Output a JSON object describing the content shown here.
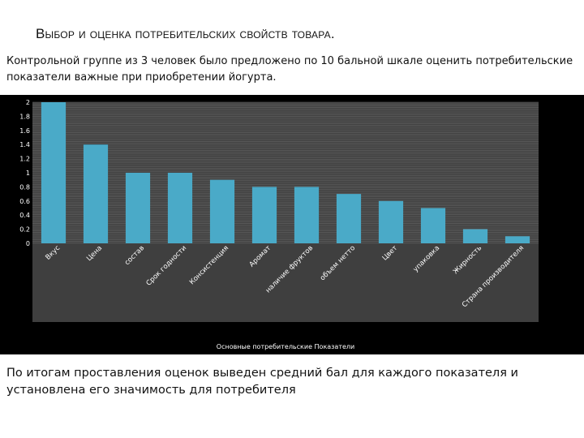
{
  "slide": {
    "title": "Выбор и оценка потребительских свойств товара.",
    "intro": "Контрольной группе из 3 человек было предложено по 10 бальной шкале оценить потребительские показатели важные при приобретении йогурта.",
    "conclusion": "По итогам проставления оценок выведен средний бал для каждого показателя и установлена его значимость для потребителя"
  },
  "colors": {
    "bar": "#4aaac8",
    "plot_bg": "#3f3f3f",
    "frame_bg": "#000000",
    "grid": "#6a6a6a",
    "text": "#ffffff"
  },
  "chart_data": {
    "type": "bar",
    "categories": [
      "Вкус",
      "Цена",
      "состав",
      "Срок годности",
      "Консистенция",
      "Аромат",
      "наличие фруктов",
      "объем нетто",
      "Цвет",
      "упаковка",
      "Жирность",
      "Страна производителя"
    ],
    "values": [
      2.0,
      1.4,
      1.0,
      1.0,
      0.9,
      0.8,
      0.8,
      0.7,
      0.6,
      0.5,
      0.2,
      0.1
    ],
    "ylim": [
      0,
      2
    ],
    "yticks": [
      "0",
      "0.2",
      "0.4",
      "0.6",
      "0.8",
      "1",
      "1.2",
      "1.4",
      "1.6",
      "1.8",
      "2"
    ],
    "xlabel": "Основные потребительские Показатели",
    "ylabel": "",
    "grid": true
  }
}
